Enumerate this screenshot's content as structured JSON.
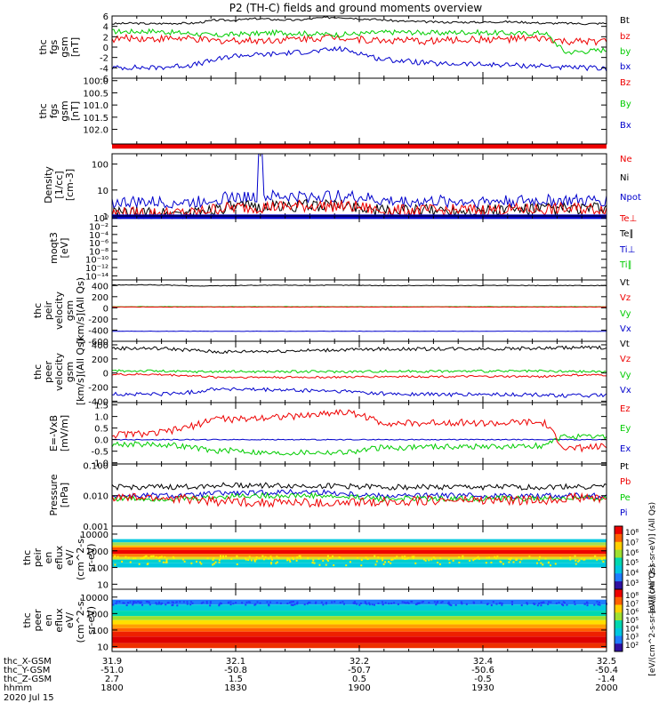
{
  "title": "P2 (TH-C) fields and ground moments overview",
  "colors": {
    "black": "#000000",
    "red": "#ee0000",
    "green": "#00cc00",
    "blue": "#0000cc"
  },
  "chart_data": [
    {
      "type": "line",
      "ylabel_lines": [
        "thc",
        "fgs",
        "gsm",
        "[nT]"
      ],
      "yticks": [
        "6",
        "4",
        "2",
        "0",
        "-2",
        "-4",
        "-6"
      ],
      "ylim": [
        -6,
        6
      ],
      "legend": [
        {
          "label": "Bt",
          "color": "black"
        },
        {
          "label": "bz",
          "color": "red"
        },
        {
          "label": "by",
          "color": "green"
        },
        {
          "label": "bx",
          "color": "blue"
        }
      ],
      "series": [
        {
          "name": "Bt",
          "color": "black",
          "values": [
            4.5,
            4.6,
            4.5,
            4.6,
            4.6,
            5.2,
            5.2,
            5.5,
            5.3,
            5.2,
            5.6,
            5.8,
            5.5,
            5.3,
            5.0,
            4.9,
            4.8,
            4.8,
            4.8,
            4.9,
            4.8,
            4.6,
            4.6,
            4.5,
            4.6
          ],
          "noise": 0.2
        },
        {
          "name": "bz",
          "color": "red",
          "values": [
            1.5,
            1.8,
            1.6,
            1.7,
            1.5,
            1.2,
            1.3,
            1.3,
            1.4,
            1.6,
            1.8,
            2.0,
            1.5,
            1.3,
            1.3,
            1.1,
            1.3,
            1.4,
            1.5,
            1.5,
            1.6,
            1.6,
            1.0,
            1.0,
            1.2
          ],
          "noise": 0.7
        },
        {
          "name": "by",
          "color": "green",
          "values": [
            3.0,
            3.0,
            3.1,
            2.8,
            2.6,
            2.2,
            2.5,
            2.6,
            2.8,
            2.7,
            2.5,
            2.4,
            2.6,
            2.8,
            2.9,
            2.8,
            2.7,
            2.9,
            2.8,
            2.7,
            2.6,
            2.8,
            -1.0,
            -0.8,
            -0.5
          ],
          "noise": 0.5
        },
        {
          "name": "bx",
          "color": "blue",
          "values": [
            -4.0,
            -3.9,
            -4.0,
            -3.7,
            -3.4,
            -2.5,
            -1.6,
            -1.5,
            -1.3,
            -1.0,
            -0.8,
            -0.3,
            -1.1,
            -2.3,
            -2.6,
            -3.0,
            -3.3,
            -3.2,
            -3.4,
            -3.4,
            -3.6,
            -3.6,
            -4.0,
            -4.0,
            -4.2
          ],
          "noise": 0.5
        }
      ]
    },
    {
      "type": "line",
      "ylabel_lines": [
        "thc",
        "fgs",
        "gsm",
        "[nT]"
      ],
      "yticks": [
        "100.0",
        "100.5",
        "101.0",
        "101.5",
        "102.0"
      ],
      "ylim": [
        102.6,
        99.9
      ],
      "legend": [
        {
          "label": "Bz",
          "color": "red"
        },
        {
          "label": "By",
          "color": "green"
        },
        {
          "label": "Bx",
          "color": "blue"
        }
      ],
      "series": [
        {
          "name": "Bz",
          "color": "red",
          "values": [
            102.7,
            102.7
          ]
        }
      ]
    },
    {
      "type": "line",
      "scale": "log",
      "ylabel_lines": [
        "Density",
        "[1/cc]",
        "[cm-3]"
      ],
      "yticks": [
        "100",
        "10",
        "1"
      ],
      "ytick_values": [
        100,
        10,
        1
      ],
      "ylim": [
        1,
        250
      ],
      "legend": [
        {
          "label": "Ne",
          "color": "red"
        },
        {
          "label": "Ni",
          "color": "black"
        },
        {
          "label": "Npot",
          "color": "blue"
        }
      ],
      "series": [
        {
          "name": "Npot",
          "color": "blue",
          "values": [
            3.3,
            3.4,
            3.3,
            3.4,
            3.3,
            4.8,
            5.2,
            5.4,
            5.5,
            5.6,
            5.8,
            5.7,
            5.3,
            3.8,
            3.6,
            3.6,
            3.7,
            3.6,
            3.7,
            3.8,
            3.8,
            3.9,
            3.9,
            3.8,
            4.0
          ],
          "noise": 0.08,
          "spike": {
            "at": 0.3,
            "value": 250
          }
        },
        {
          "name": "Ni",
          "color": "black",
          "values": [
            1.3,
            1.3,
            1.3,
            1.3,
            1.3,
            2.0,
            2.2,
            2.3,
            2.4,
            2.5,
            2.6,
            2.5,
            2.3,
            1.6,
            1.6,
            1.6,
            1.7,
            1.7,
            1.7,
            1.8,
            1.8,
            1.9,
            1.9,
            1.9,
            2.0
          ],
          "noise": 0.08
        },
        {
          "name": "Ne",
          "color": "red",
          "values": [
            1.3,
            1.3,
            1.3,
            1.3,
            1.3,
            1.9,
            2.1,
            2.2,
            2.3,
            2.4,
            2.5,
            2.4,
            2.2,
            1.6,
            1.6,
            1.6,
            1.6,
            1.7,
            1.7,
            1.8,
            1.8,
            1.8,
            1.9,
            1.9,
            2.0
          ],
          "noise": 0.08
        }
      ]
    },
    {
      "type": "line",
      "scale": "log",
      "ylabel_lines": [
        "moqt3",
        "[eV]"
      ],
      "yticks": [
        "10⁰",
        "10⁻²",
        "10⁻⁴",
        "10⁻⁶",
        "10⁻⁸",
        "10⁻¹⁰",
        "10⁻¹²",
        "10⁻¹⁴"
      ],
      "ytick_values": [
        1,
        0.01,
        0.0001,
        1e-06,
        1e-08,
        1e-10,
        1e-12,
        1e-14
      ],
      "ylim": [
        1e-15,
        3
      ],
      "legend": [
        {
          "label": "Te⊥",
          "color": "red"
        },
        {
          "label": "Te∥",
          "color": "black"
        },
        {
          "label": "Ti⊥",
          "color": "blue"
        },
        {
          "label": "Ti∥",
          "color": "green"
        }
      ],
      "series": [
        {
          "name": "Ti⊥",
          "color": "blue",
          "values": [
            2,
            2
          ]
        }
      ]
    },
    {
      "type": "line",
      "ylabel_lines": [
        "thc",
        "peir",
        "velocity",
        "gsm",
        "[km/s](All Qs)"
      ],
      "yticks": [
        "400",
        "200",
        "0",
        "-200",
        "-400",
        "-600"
      ],
      "ylim": [
        -600,
        500
      ],
      "legend": [
        {
          "label": "Vt",
          "color": "black"
        },
        {
          "label": "Vz",
          "color": "red"
        },
        {
          "label": "Vy",
          "color": "green"
        },
        {
          "label": "Vx",
          "color": "blue"
        }
      ],
      "series": [
        {
          "name": "Vt",
          "color": "black",
          "values": [
            410,
            410,
            410,
            405,
            390,
            395,
            400,
            405,
            405,
            405,
            405,
            405,
            405,
            400,
            400,
            400,
            400,
            400,
            400,
            400,
            400,
            400,
            400,
            400,
            400
          ],
          "noise": 6
        },
        {
          "name": "Vy",
          "color": "green",
          "values": [
            20,
            20,
            20,
            20,
            20,
            20,
            20,
            20,
            20,
            20,
            20,
            20,
            20,
            20,
            20,
            20,
            20,
            20,
            20,
            20,
            20,
            20,
            20,
            20,
            20
          ],
          "noise": 3
        },
        {
          "name": "Vz",
          "color": "red",
          "values": [
            15,
            15,
            15,
            15,
            15,
            15,
            15,
            15,
            15,
            15,
            15,
            15,
            15,
            15,
            15,
            15,
            15,
            15,
            15,
            15,
            15,
            15,
            15,
            15,
            15
          ],
          "noise": 3
        },
        {
          "name": "Vx",
          "color": "blue",
          "values": [
            -420,
            -420,
            -420,
            -420,
            -420,
            -420,
            -420,
            -420,
            -420,
            -420,
            -420,
            -420,
            -420,
            -420,
            -420,
            -420,
            -420,
            -420,
            -420,
            -420,
            -420,
            -420,
            -420,
            -420,
            -420
          ],
          "noise": 3
        }
      ]
    },
    {
      "type": "line",
      "ylabel_lines": [
        "thc",
        "peer",
        "velocity",
        "gsm",
        "[km/s](All Qs)"
      ],
      "yticks": [
        "400",
        "200",
        "0",
        "-200",
        "-400"
      ],
      "ylim": [
        -420,
        450
      ],
      "legend": [
        {
          "label": "Vt",
          "color": "black"
        },
        {
          "label": "Vz",
          "color": "red"
        },
        {
          "label": "Vy",
          "color": "green"
        },
        {
          "label": "Vx",
          "color": "blue"
        }
      ],
      "series": [
        {
          "name": "Vt",
          "color": "black",
          "values": [
            350,
            350,
            350,
            340,
            320,
            300,
            300,
            310,
            310,
            320,
            320,
            330,
            330,
            340,
            340,
            340,
            345,
            345,
            345,
            345,
            350,
            350,
            360,
            360,
            360
          ],
          "noise": 25
        },
        {
          "name": "Vy",
          "color": "green",
          "values": [
            30,
            30,
            30,
            20,
            20,
            20,
            20,
            20,
            20,
            20,
            20,
            20,
            20,
            25,
            25,
            25,
            25,
            25,
            25,
            25,
            25,
            25,
            20,
            20,
            20
          ],
          "noise": 18
        },
        {
          "name": "Vz",
          "color": "red",
          "values": [
            -20,
            -20,
            -20,
            -30,
            -40,
            -60,
            -60,
            -60,
            -60,
            -60,
            -60,
            -60,
            -55,
            -50,
            -50,
            -50,
            -50,
            -50,
            -50,
            -50,
            -50,
            -50,
            -30,
            -30,
            -30
          ],
          "noise": 15
        },
        {
          "name": "Vx",
          "color": "blue",
          "values": [
            -300,
            -300,
            -300,
            -290,
            -270,
            -220,
            -230,
            -240,
            -240,
            -250,
            -250,
            -260,
            -270,
            -290,
            -300,
            -300,
            -305,
            -305,
            -305,
            -305,
            -310,
            -310,
            -320,
            -320,
            -320
          ],
          "noise": 28
        }
      ]
    },
    {
      "type": "line",
      "ylabel_lines": [
        "E=-VxB",
        "[mV/m]"
      ],
      "yticks": [
        "1.5",
        "1.0",
        "0.5",
        "0.0",
        "-0.5",
        "-1.0"
      ],
      "ylim": [
        -1.05,
        1.6
      ],
      "legend": [
        {
          "label": "Ez",
          "color": "red"
        },
        {
          "label": "Ey",
          "color": "green"
        },
        {
          "label": "Ex",
          "color": "blue"
        }
      ],
      "series": [
        {
          "name": "Ex",
          "color": "blue",
          "values": [
            0.0,
            0.0,
            0.0,
            0.0,
            0.0,
            0.0,
            0.0,
            0.0,
            0.0,
            0.0,
            0.0,
            0.0,
            0.0,
            0.0,
            0.0,
            0.0,
            0.0,
            0.0,
            0.0,
            0.0,
            0.0,
            0.0,
            0.0,
            0.0,
            0.0
          ],
          "noise": 0.02
        },
        {
          "name": "Ey",
          "color": "green",
          "values": [
            -0.2,
            -0.2,
            -0.2,
            -0.25,
            -0.35,
            -0.5,
            -0.45,
            -0.55,
            -0.6,
            -0.55,
            -0.55,
            -0.55,
            -0.5,
            -0.35,
            -0.35,
            -0.3,
            -0.3,
            -0.3,
            -0.3,
            -0.3,
            -0.3,
            -0.25,
            0.15,
            0.1,
            0.15
          ],
          "noise": 0.12
        },
        {
          "name": "Ez",
          "color": "red",
          "values": [
            0.2,
            0.25,
            0.25,
            0.4,
            0.6,
            0.95,
            0.85,
            0.95,
            1.0,
            1.0,
            1.1,
            1.2,
            1.1,
            0.75,
            0.7,
            0.7,
            0.75,
            0.75,
            0.7,
            0.7,
            0.75,
            0.7,
            -0.4,
            -0.35,
            -0.3
          ],
          "noise": 0.15
        }
      ]
    },
    {
      "type": "line",
      "scale": "log",
      "ylabel_lines": [
        "Pressure",
        "[nPa]"
      ],
      "yticks": [
        "0.100",
        "0.010",
        "0.001"
      ],
      "ytick_values": [
        0.1,
        0.01,
        0.001
      ],
      "ylim": [
        0.001,
        0.11
      ],
      "legend": [
        {
          "label": "Pt",
          "color": "black"
        },
        {
          "label": "Pb",
          "color": "red"
        },
        {
          "label": "Pe",
          "color": "green"
        },
        {
          "label": "Pi",
          "color": "blue"
        }
      ],
      "series": [
        {
          "name": "Pt",
          "color": "black",
          "values": [
            0.019,
            0.019,
            0.019,
            0.019,
            0.02,
            0.022,
            0.022,
            0.022,
            0.021,
            0.021,
            0.021,
            0.021,
            0.02,
            0.019,
            0.019,
            0.019,
            0.019,
            0.019,
            0.019,
            0.019,
            0.019,
            0.019,
            0.02,
            0.02,
            0.02
          ],
          "noise": 0.03
        },
        {
          "name": "Pi",
          "color": "blue",
          "values": [
            0.01,
            0.01,
            0.01,
            0.01,
            0.01,
            0.012,
            0.012,
            0.012,
            0.013,
            0.013,
            0.013,
            0.012,
            0.011,
            0.01,
            0.01,
            0.01,
            0.01,
            0.01,
            0.01,
            0.01,
            0.01,
            0.01,
            0.01,
            0.01,
            0.01
          ],
          "noise": 0.03
        },
        {
          "name": "Pe",
          "color": "green",
          "values": [
            0.008,
            0.008,
            0.008,
            0.008,
            0.008,
            0.009,
            0.01,
            0.01,
            0.01,
            0.01,
            0.01,
            0.009,
            0.009,
            0.008,
            0.008,
            0.008,
            0.008,
            0.008,
            0.008,
            0.008,
            0.008,
            0.008,
            0.008,
            0.008,
            0.008
          ],
          "noise": 0.03
        },
        {
          "name": "Pb",
          "color": "red",
          "values": [
            0.0085,
            0.0085,
            0.0085,
            0.008,
            0.0075,
            0.0065,
            0.0065,
            0.006,
            0.006,
            0.006,
            0.0055,
            0.0055,
            0.006,
            0.0065,
            0.0065,
            0.007,
            0.007,
            0.007,
            0.007,
            0.007,
            0.007,
            0.007,
            0.0085,
            0.0085,
            0.0085
          ],
          "noise": 0.05
        }
      ]
    },
    {
      "type": "heatmap",
      "ylabel_lines": [
        "thc",
        "peir",
        "en",
        "eflux",
        "eV/",
        "(cm^2-s-",
        "sr-eV)"
      ],
      "yticks": [
        "10000",
        "1000",
        "100",
        "10"
      ],
      "ytick_values": [
        10000,
        1000,
        100,
        10
      ],
      "ylim": [
        5,
        30000
      ],
      "colorbar": {
        "ticks": [
          "10⁸",
          "10⁷",
          "10⁶",
          "10⁵",
          "10⁴",
          "10³"
        ],
        "label": "[eV/(cm^2-s-sr-eV)] (All Qs)"
      }
    },
    {
      "type": "heatmap",
      "ylabel_lines": [
        "thc",
        "peer",
        "en",
        "eflux",
        "eV/",
        "(cm^2-s-",
        "sr-eV)"
      ],
      "yticks": [
        "10000",
        "1000",
        "100",
        "10"
      ],
      "ytick_values": [
        10000,
        1000,
        100,
        10
      ],
      "ylim": [
        5,
        30000
      ],
      "colorbar": {
        "ticks": [
          "10⁸",
          "10⁷",
          "10⁶",
          "10⁵",
          "10⁴",
          "10³",
          "10²"
        ],
        "label": "[eV/(cm^2-s-sr-eV)] (All Qs)"
      }
    }
  ],
  "ephemeris": {
    "row_labels": [
      "thc_X-GSM",
      "thc_Y-GSM",
      "thc_Z-GSM",
      "hhmm",
      "2020 Jul 15"
    ],
    "columns": [
      [
        "31.9",
        "-51.0",
        "2.7",
        "1800"
      ],
      [
        "32.1",
        "-50.8",
        "1.5",
        "1830"
      ],
      [
        "32.2",
        "-50.7",
        "0.5",
        "1900"
      ],
      [
        "32.4",
        "-50.6",
        "-0.5",
        "1930"
      ],
      [
        "32.5",
        "-50.4",
        "-1.4",
        "2000"
      ]
    ]
  }
}
